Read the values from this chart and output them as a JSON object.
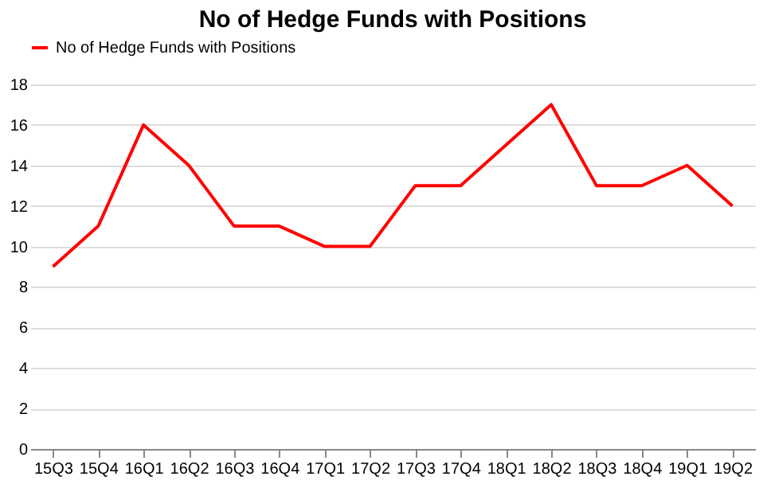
{
  "chart_data": {
    "type": "line",
    "title": "No of Hedge Funds with Positions",
    "categories": [
      "15Q3",
      "15Q4",
      "16Q1",
      "16Q2",
      "16Q3",
      "16Q4",
      "17Q1",
      "17Q2",
      "17Q3",
      "17Q4",
      "18Q1",
      "18Q2",
      "18Q3",
      "18Q4",
      "19Q1",
      "19Q2"
    ],
    "series": [
      {
        "name": "No of Hedge Funds with Positions",
        "color": "#ff0000",
        "values": [
          9,
          11,
          16,
          14,
          11,
          11,
          10,
          10,
          13,
          13,
          15,
          17,
          13,
          13,
          14,
          12
        ]
      }
    ],
    "ylim": [
      0,
      18
    ],
    "yticks": [
      0,
      2,
      4,
      6,
      8,
      10,
      12,
      14,
      16,
      18
    ],
    "grid": "y",
    "legend": "top",
    "marker": "none",
    "line_style": "solid"
  }
}
